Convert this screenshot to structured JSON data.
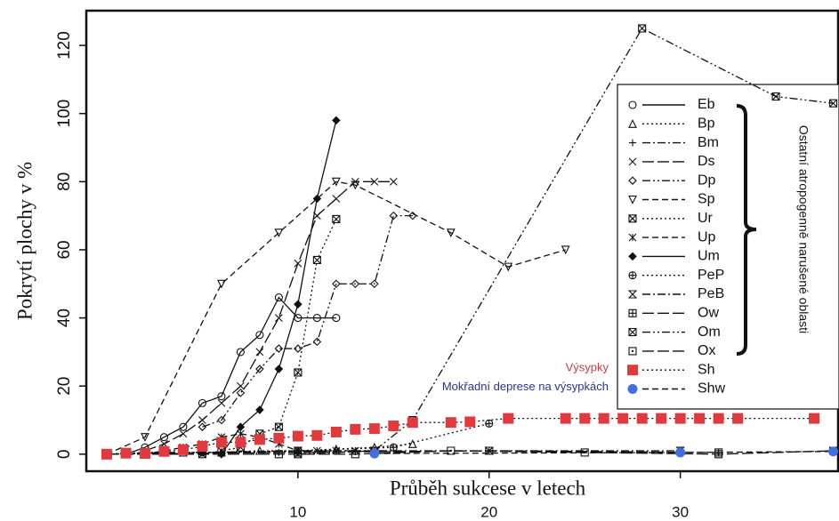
{
  "chart_data": {
    "type": "line",
    "ylabel": "Pokrytí plochy v %",
    "xlabel": "Průběh sukcese v letech",
    "xlim": [
      -1.07,
      38.3
    ],
    "ylim": [
      -5,
      130.2
    ],
    "xticks": [
      10,
      20,
      30
    ],
    "yticks": [
      0,
      20,
      40,
      60,
      80,
      100,
      120
    ],
    "legend_note": "Ostatní atropogenně narušené oblasti",
    "annotations": [
      {
        "text": "Výsypky",
        "color": "#d03a3a"
      },
      {
        "text": "Mokřadní deprese na výsypkách",
        "color": "#2b3590"
      }
    ],
    "series": [
      {
        "name": "Eb",
        "marker": "circle",
        "dash": "solid",
        "color": "#111",
        "x": [
          1,
          2,
          3,
          4,
          5,
          6,
          7,
          8,
          9,
          10,
          11,
          12
        ],
        "values": [
          0,
          2,
          5,
          8,
          15,
          17,
          30,
          35,
          46,
          40,
          40,
          40
        ]
      },
      {
        "name": "Bp",
        "marker": "triangle",
        "dash": "dotted",
        "color": "#111",
        "x": [
          0,
          2,
          4,
          6,
          8,
          10,
          12,
          14,
          16
        ],
        "values": [
          0,
          0.5,
          0.5,
          0.5,
          1,
          1,
          1.5,
          2,
          3
        ]
      },
      {
        "name": "Bm",
        "marker": "plus",
        "dash": "dashdot",
        "color": "#111",
        "x": [
          0,
          3,
          6,
          9,
          12,
          15
        ],
        "values": [
          0,
          0.5,
          0.5,
          0.5,
          1,
          1
        ]
      },
      {
        "name": "Ds",
        "marker": "cross",
        "dash": "longdash",
        "color": "#111",
        "x": [
          2,
          3,
          4,
          5,
          6,
          7,
          8,
          9,
          10,
          11,
          12,
          13,
          14,
          15
        ],
        "values": [
          1,
          3,
          6,
          10,
          15,
          20,
          30,
          40,
          56,
          70,
          75,
          80,
          80,
          80
        ]
      },
      {
        "name": "Dp",
        "marker": "diamond",
        "dash": "dashdotdot",
        "color": "#111",
        "x": [
          5,
          6,
          7,
          8,
          9,
          10,
          11,
          12,
          13,
          14,
          15,
          16
        ],
        "values": [
          8,
          10,
          18,
          25,
          31,
          31,
          33,
          50,
          50,
          50,
          70,
          70
        ]
      },
      {
        "name": "Sp",
        "marker": "triangle-down",
        "dash": "dash",
        "color": "#111",
        "x": [
          0,
          2,
          6,
          9,
          12,
          13,
          18,
          21,
          24
        ],
        "values": [
          0,
          5,
          50,
          65,
          80,
          79,
          65,
          55,
          60
        ]
      },
      {
        "name": "Ur",
        "marker": "square-x",
        "dash": "dotted",
        "color": "#111",
        "x": [
          5,
          6,
          7,
          8,
          9,
          10,
          11,
          12
        ],
        "values": [
          0,
          1,
          2,
          6,
          8,
          24,
          57,
          69
        ]
      },
      {
        "name": "Up",
        "marker": "asterisk",
        "dash": "dash",
        "color": "#111",
        "x": [
          2,
          3,
          4,
          5,
          6,
          7,
          8,
          9,
          10,
          11,
          12,
          13
        ],
        "values": [
          0,
          1,
          2,
          3,
          5,
          6,
          5,
          3,
          1,
          1,
          1,
          1
        ]
      },
      {
        "name": "Um",
        "marker": "diamond-filled",
        "dash": "solid",
        "color": "#111",
        "x": [
          6,
          7,
          8,
          9,
          10,
          11,
          12
        ],
        "values": [
          0,
          8,
          13,
          25,
          44,
          75,
          98
        ]
      },
      {
        "name": "PeP",
        "marker": "circle-plus",
        "dash": "dotted",
        "color": "#111",
        "x": [
          0,
          5,
          10,
          15,
          20
        ],
        "values": [
          0,
          0.5,
          1,
          2,
          9
        ]
      },
      {
        "name": "PeB",
        "marker": "hourglass",
        "dash": "dashdot",
        "color": "#111",
        "x": [
          0,
          10,
          20,
          30
        ],
        "values": [
          0,
          1,
          1,
          1
        ]
      },
      {
        "name": "Ow",
        "marker": "square-plus",
        "dash": "longdash",
        "color": "#111",
        "x": [
          0,
          10,
          20,
          32
        ],
        "values": [
          0,
          0.5,
          1,
          0.5
        ]
      },
      {
        "name": "Om",
        "marker": "square-x",
        "dash": "dashdotdot",
        "color": "#111",
        "x": [
          10,
          14,
          16,
          28,
          35,
          38
        ],
        "values": [
          0,
          1,
          10,
          125,
          105,
          103
        ]
      },
      {
        "name": "Ox",
        "marker": "square-dot",
        "dash": "longdash",
        "color": "#111",
        "x": [
          0,
          9,
          13,
          18,
          25,
          32,
          38
        ],
        "values": [
          0,
          0,
          0,
          1,
          0.5,
          0,
          1
        ]
      },
      {
        "name": "Sh",
        "marker": "square-filled",
        "dash": "dotted",
        "color": "#e0393e",
        "x": [
          0,
          1,
          2,
          3,
          4,
          5,
          6,
          7,
          8,
          9,
          10,
          11,
          12,
          13,
          14,
          15,
          16,
          18,
          19,
          21,
          24,
          25,
          26,
          27,
          28,
          29,
          30,
          31,
          32,
          33,
          37
        ],
        "values": [
          0,
          0.3,
          0.2,
          0.8,
          1.3,
          2.3,
          3.5,
          3.5,
          4.3,
          4.7,
          5.3,
          5.5,
          6.5,
          7.3,
          7.5,
          8.3,
          9.3,
          9.3,
          9.5,
          10.5,
          10.5,
          10.5,
          10.5,
          10.5,
          10.5,
          10.5,
          10.5,
          10.5,
          10.5,
          10.5,
          10.5
        ]
      },
      {
        "name": "Shw",
        "marker": "dot",
        "dash": "dash",
        "color": "#3f6fe0",
        "x": [
          14,
          30,
          38
        ],
        "values": [
          0.2,
          0.5,
          0.8
        ]
      }
    ]
  }
}
